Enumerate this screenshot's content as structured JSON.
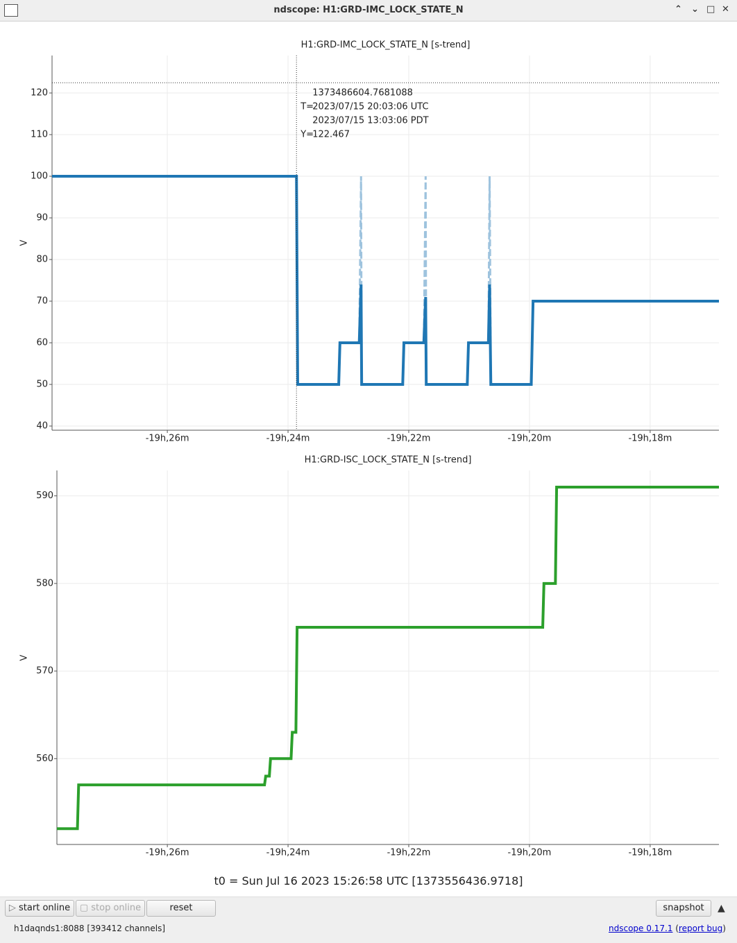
{
  "window": {
    "title": "ndscope: H1:GRD-IMC_LOCK_STATE_N"
  },
  "chart_data": [
    {
      "type": "line",
      "title": "H1:GRD-IMC_LOCK_STATE_N [s-trend]",
      "ylabel": "V",
      "x": [
        -1167.91,
        -1163.86,
        -1163.84,
        -1163.16,
        -1163.14,
        -1162.82,
        -1162.79,
        -1162.78,
        -1162.1,
        -1162.08,
        -1161.75,
        -1161.72,
        -1161.71,
        -1161.03,
        -1161.01,
        -1160.68,
        -1160.66,
        -1160.64,
        -1159.97,
        -1159.94,
        -1156.86
      ],
      "series": [
        {
          "color": "#9ec3de",
          "dash": true,
          "values": [
            100,
            100,
            50,
            50,
            60,
            60,
            100,
            50,
            50,
            60,
            60,
            100,
            50,
            50,
            60,
            60,
            100,
            50,
            50,
            70,
            70
          ]
        },
        {
          "color": "#1f77b4",
          "values": [
            100,
            100,
            50,
            50,
            60,
            60,
            74,
            50,
            50,
            60,
            60,
            71,
            50,
            50,
            60,
            60,
            74,
            50,
            50,
            70,
            70
          ]
        }
      ],
      "xlim": [
        -1167.91,
        -1156.86
      ],
      "xticks": [
        {
          "value": -1166,
          "label": "-19h,26m"
        },
        {
          "value": -1164,
          "label": "-19h,24m"
        },
        {
          "value": -1162,
          "label": "-19h,22m"
        },
        {
          "value": -1160,
          "label": "-19h,20m"
        },
        {
          "value": -1158,
          "label": "-19h,18m"
        }
      ],
      "ylim": [
        39,
        129
      ],
      "yticks": [
        40,
        50,
        60,
        70,
        80,
        90,
        100,
        110,
        120
      ],
      "grid": true,
      "cursor": {
        "x": -1163.86,
        "y": 122.467,
        "gps": "1373486604.7681088",
        "t_label": "T=",
        "utc": "2023/07/15 20:03:06 UTC",
        "pdt": "2023/07/15 13:03:06 PDT",
        "y_label": "Y="
      }
    },
    {
      "type": "line",
      "title": "H1:GRD-ISC_LOCK_STATE_N [s-trend]",
      "ylabel": "V",
      "x": [
        -1167.83,
        -1167.49,
        -1167.47,
        -1164.39,
        -1164.37,
        -1164.31,
        -1164.29,
        -1163.95,
        -1163.93,
        -1163.87,
        -1163.85,
        -1159.78,
        -1159.76,
        -1159.57,
        -1159.55,
        -1156.86
      ],
      "series": [
        {
          "color": "#2ca02c",
          "values": [
            552,
            552,
            557,
            557,
            558,
            558,
            560,
            560,
            563,
            563,
            575,
            575,
            580,
            580,
            591,
            591
          ]
        }
      ],
      "xlim": [
        -1167.83,
        -1156.86
      ],
      "xticks": [
        {
          "value": -1166,
          "label": "-19h,26m"
        },
        {
          "value": -1164,
          "label": "-19h,24m"
        },
        {
          "value": -1162,
          "label": "-19h,22m"
        },
        {
          "value": -1160,
          "label": "-19h,20m"
        },
        {
          "value": -1158,
          "label": "-19h,18m"
        }
      ],
      "ylim": [
        550.2,
        592.9
      ],
      "yticks": [
        560,
        570,
        580,
        590
      ],
      "grid": true
    }
  ],
  "t0": "t0 = Sun Jul 16 2023 15:26:58 UTC [1373556436.9718]",
  "toolbar": {
    "start": "start online",
    "stop": "stop online",
    "reset": "reset",
    "snapshot": "snapshot"
  },
  "status": {
    "server": "h1daqnds1:8088  [393412 channels]",
    "version": "ndscope 0.17.1",
    "bug": "report bug"
  }
}
